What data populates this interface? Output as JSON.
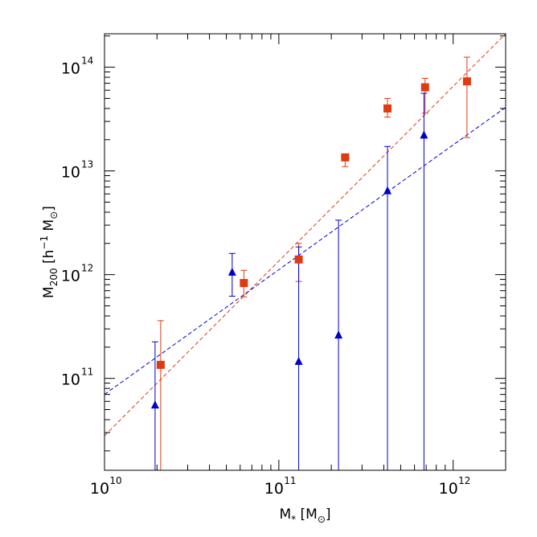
{
  "chart_data": {
    "type": "scatter",
    "title": "",
    "xlabel": "M_* [M_⊙]",
    "ylabel": "M_200 [h^-1 M_⊙]",
    "xlabel_parts": {
      "base": "M",
      "sub": "*",
      "bracket_open": " [M",
      "bracket_sub": "⊙",
      "bracket_close": "]"
    },
    "ylabel_parts": {
      "base": "M",
      "sub": "200",
      "mid": " [h",
      "sup": "−1",
      "tail": " M",
      "tail_sub": "⊙",
      "close": "]"
    },
    "xscale": "log",
    "yscale": "log",
    "xlim": [
      10000000000.0,
      2000000000000.0
    ],
    "ylim": [
      13000000000.0,
      210000000000000.0
    ],
    "xticks": [
      {
        "value": 10000000000.0,
        "base": "10",
        "exp": "10"
      },
      {
        "value": 100000000000.0,
        "base": "10",
        "exp": "11"
      },
      {
        "value": 1000000000000.0,
        "base": "10",
        "exp": "12"
      }
    ],
    "yticks": [
      {
        "value": 100000000000.0,
        "base": "10",
        "exp": "11"
      },
      {
        "value": 1000000000000.0,
        "base": "10",
        "exp": "12"
      },
      {
        "value": 10000000000000.0,
        "base": "10",
        "exp": "13"
      },
      {
        "value": 100000000000000.0,
        "base": "10",
        "exp": "14"
      }
    ],
    "grid": false,
    "series": [
      {
        "marker": "square",
        "color": "#e03a10",
        "points": [
          {
            "x": 21000000000.0,
            "y": 135000000000.0,
            "ylo": 13000000000.0,
            "yhi": 360000000000.0
          },
          {
            "x": 63000000000.0,
            "y": 830000000000.0,
            "ylo": 610000000000.0,
            "yhi": 1100000000000.0
          },
          {
            "x": 130000000000.0,
            "y": 1400000000000.0,
            "ylo": 860000000000.0,
            "yhi": 2000000000000.0
          },
          {
            "x": 240000000000.0,
            "y": 13500000000000.0,
            "ylo": 11000000000000.0,
            "yhi": 14500000000000.0
          },
          {
            "x": 420000000000.0,
            "y": 40000000000000.0,
            "ylo": 33000000000000.0,
            "yhi": 50000000000000.0
          },
          {
            "x": 690000000000.0,
            "y": 64000000000000.0,
            "ylo": 36000000000000.0,
            "yhi": 78000000000000.0
          },
          {
            "x": 1200000000000.0,
            "y": 73000000000000.0,
            "ylo": 21000000000000.0,
            "yhi": 125000000000000.0
          }
        ],
        "fit": {
          "style": "dashed",
          "y_at_xmin": 28000000000.0,
          "y_at_xmax": 210000000000000.0
        }
      },
      {
        "marker": "triangle",
        "color": "#0000cc",
        "points": [
          {
            "x": 19500000000.0,
            "y": 55000000000.0,
            "ylo": 13000000000.0,
            "yhi": 225000000000.0
          },
          {
            "x": 54000000000.0,
            "y": 1050000000000.0,
            "ylo": 620000000000.0,
            "yhi": 1600000000000.0
          },
          {
            "x": 130000000000.0,
            "y": 145000000000.0,
            "ylo": 13000000000.0,
            "yhi": 1850000000000.0
          },
          {
            "x": 220000000000.0,
            "y": 260000000000.0,
            "ylo": 13000000000.0,
            "yhi": 3350000000000.0
          },
          {
            "x": 420000000000.0,
            "y": 6400000000000.0,
            "ylo": 13000000000.0,
            "yhi": 17200000000000.0
          },
          {
            "x": 680000000000.0,
            "y": 22000000000000.0,
            "ylo": 13000000000.0,
            "yhi": 56000000000000.0
          }
        ],
        "fit": {
          "style": "dashed",
          "y_at_xmin": 70000000000.0,
          "y_at_xmax": 41000000000000.0
        }
      }
    ]
  }
}
